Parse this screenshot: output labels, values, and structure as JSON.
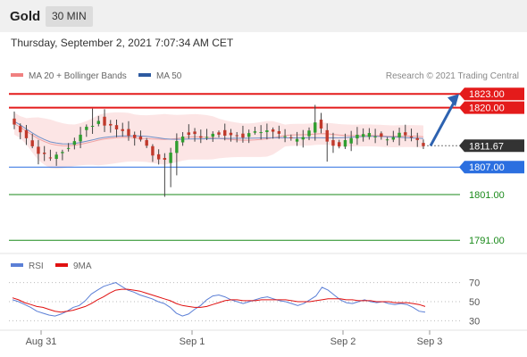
{
  "header": {
    "instrument": "Gold",
    "timeframe": "30 MIN"
  },
  "datetime": "Thursday, September 2, 2021 7:07:34 AM CET",
  "legend": {
    "ma20_bb": {
      "label": "MA 20 + Bollinger Bands",
      "color": "#f08080"
    },
    "ma50": {
      "label": "MA 50",
      "color": "#2d5aa0"
    },
    "rsi": {
      "label": "RSI",
      "color": "#5b7fd6"
    },
    "ma9": {
      "label": "9MA",
      "color": "#e01010"
    }
  },
  "copyright": "Research © 2021 Trading Central",
  "colors": {
    "resistance": "#e41b1b",
    "current": "#333333",
    "pivot": "#2b6fe0",
    "support": "#1a8a1a",
    "up_candle": "#2f9e2f",
    "down_candle": "#c0392b"
  },
  "chart_data": [
    {
      "type": "candlestick",
      "y_range": [
        1788.5,
        1824.8
      ],
      "levels": [
        {
          "value": 1823.0,
          "label": "1823.00",
          "kind": "resistance"
        },
        {
          "value": 1820.0,
          "label": "1820.00",
          "kind": "resistance"
        },
        {
          "value": 1811.67,
          "label": "1811.67",
          "kind": "current"
        },
        {
          "value": 1807.0,
          "label": "1807.00",
          "kind": "pivot"
        },
        {
          "value": 1801.0,
          "label": "1801.00",
          "kind": "support"
        },
        {
          "value": 1791.0,
          "label": "1791.00",
          "kind": "support"
        }
      ],
      "target_arrow": {
        "from": 1811.67,
        "to": 1823.0
      },
      "close_path": [
        1816.5,
        1815,
        1813,
        1811.5,
        1810,
        1809.5,
        1809,
        1810,
        1810.5,
        1811.5,
        1813,
        1814.5,
        1815.5,
        1816.5,
        1817.5,
        1816.5,
        1816,
        1815.5,
        1815,
        1814,
        1813.5,
        1813,
        1812,
        1810,
        1809,
        1808.5,
        1810.5,
        1812.5,
        1814,
        1814.5,
        1814,
        1813.5,
        1814,
        1814.5,
        1814.5,
        1814,
        1814,
        1814,
        1813.5,
        1814,
        1814.5,
        1815,
        1815,
        1814.5,
        1814,
        1813.5,
        1813,
        1813.5,
        1814,
        1815,
        1817,
        1815,
        1813,
        1812,
        1811.5,
        1812.5,
        1813.5,
        1814,
        1814,
        1814,
        1814,
        1813.5,
        1813.5,
        1814,
        1814.5,
        1814,
        1813.5,
        1812.5,
        1811.67
      ]
    },
    {
      "type": "line",
      "indicator": "RSI",
      "y_range": [
        22,
        78
      ],
      "ticks": [
        70,
        50,
        30
      ],
      "x_labels": [
        "Aug 31",
        "Sep 1",
        "Sep 2",
        "Sep 3"
      ],
      "series": [
        {
          "name": "RSI",
          "values": [
            52,
            50,
            47,
            44,
            40,
            38,
            36,
            35,
            37,
            40,
            44,
            46,
            51,
            58,
            62,
            66,
            68,
            70,
            66,
            62,
            60,
            57,
            55,
            53,
            50,
            48,
            44,
            38,
            35,
            37,
            42,
            46,
            52,
            56,
            57,
            55,
            52,
            50,
            48,
            50,
            52,
            54,
            55,
            53,
            51,
            50,
            48,
            46,
            48,
            52,
            56,
            65,
            62,
            57,
            52,
            49,
            48,
            50,
            52,
            50,
            49,
            50,
            48,
            47,
            48,
            47,
            44,
            40,
            39
          ]
        },
        {
          "name": "9MA",
          "values": [
            54,
            52,
            49,
            47,
            45,
            44,
            42,
            40,
            39,
            40,
            41,
            43,
            45,
            48,
            52,
            55,
            59,
            62,
            63,
            63,
            62,
            61,
            59,
            57,
            55,
            53,
            51,
            48,
            46,
            45,
            44,
            44,
            45,
            47,
            49,
            51,
            52,
            52,
            51,
            51,
            51,
            52,
            52,
            52,
            52,
            52,
            51,
            50,
            50,
            50,
            51,
            52,
            53,
            53,
            53,
            52,
            52,
            51,
            51,
            51,
            50,
            50,
            50,
            49,
            49,
            49,
            48,
            47,
            45
          ]
        }
      ]
    }
  ]
}
